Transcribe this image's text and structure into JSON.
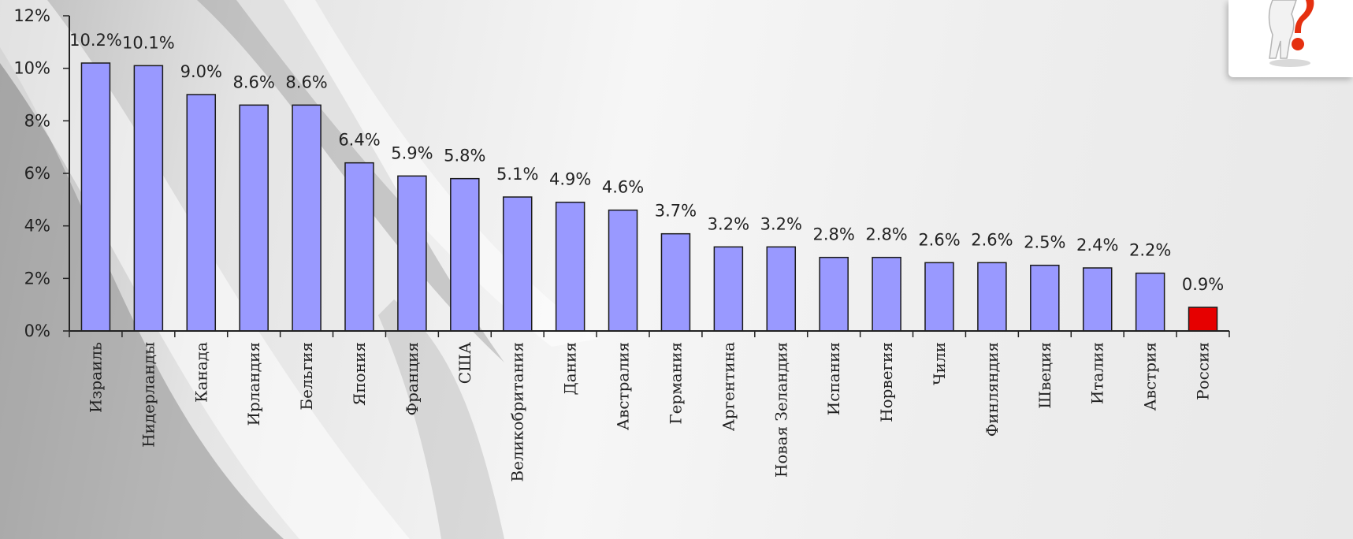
{
  "chart_data": {
    "type": "bar",
    "categories": [
      "Израиль",
      "Нидерланды",
      "Канада",
      "Ирландия",
      "Бельгия",
      "Япония",
      "Франция",
      "США",
      "Великобритания",
      "Дания",
      "Австралия",
      "Германия",
      "Аргентина",
      "Новая Зеландия",
      "Испания",
      "Норвегия",
      "Чили",
      "Финляндия",
      "Швеция",
      "Италия",
      "Австрия",
      "Россия"
    ],
    "values": [
      10.2,
      10.1,
      9.0,
      8.6,
      8.6,
      6.4,
      5.9,
      5.8,
      5.1,
      4.9,
      4.6,
      3.7,
      3.2,
      3.2,
      2.8,
      2.8,
      2.6,
      2.6,
      2.5,
      2.4,
      2.2,
      0.9
    ],
    "value_labels": [
      "10.2%",
      "10.1%",
      "9.0%",
      "8.6%",
      "8.6%",
      "6.4%",
      "5.9%",
      "5.8%",
      "5.1%",
      "4.9%",
      "4.6%",
      "3.7%",
      "3.2%",
      "3.2%",
      "2.8%",
      "2.8%",
      "2.6%",
      "2.6%",
      "2.5%",
      "2.4%",
      "2.2%",
      "0.9%"
    ],
    "ylim": [
      0,
      12
    ],
    "yticks": [
      "0%",
      "2%",
      "4%",
      "6%",
      "8%",
      "10%",
      "12%"
    ],
    "title": "",
    "xlabel": "",
    "ylabel": "",
    "grid": false,
    "legend": "none",
    "colors": {
      "bar": "#9999ff",
      "highlight": "#e60000",
      "highlight_category": "Россия"
    }
  },
  "decoration": {
    "corner_icon": "question-mark-person-icon"
  }
}
